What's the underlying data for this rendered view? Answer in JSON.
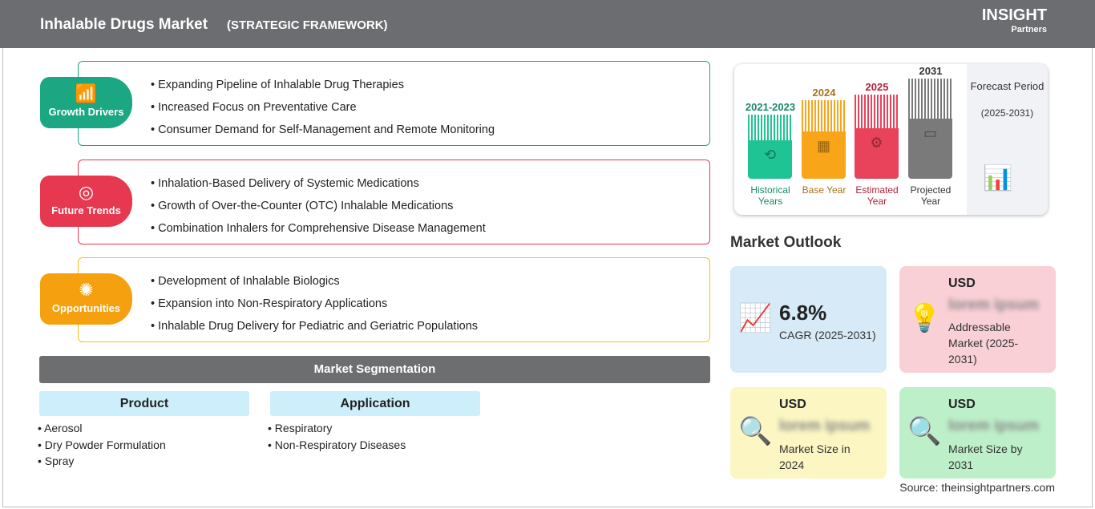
{
  "header": {
    "title": "Inhalable Drugs Market",
    "subtitle": "(STRATEGIC FRAMEWORK)",
    "logo": "The INSIGHT Partners"
  },
  "sections": [
    {
      "label": "Growth Drivers",
      "color": "#1aa782",
      "items": [
        "Expanding Pipeline of Inhalable Drug Therapies",
        "Increased Focus on Preventative Care",
        "Consumer Demand for Self-Management and Remote Monitoring"
      ]
    },
    {
      "label": "Future Trends",
      "color": "#e6384f",
      "items": [
        "Inhalation-Based Delivery of Systemic Medications",
        "Growth of Over-the-Counter (OTC) Inhalable Medications",
        "Combination Inhalers for Comprehensive Disease Management"
      ]
    },
    {
      "label": "Opportunities",
      "color": "#f5a10f",
      "items": [
        "Development of Inhalable Biologics",
        "Expansion into Non-Respiratory Applications",
        "Inhalable Drug Delivery for Pediatric and Geriatric Populations"
      ]
    }
  ],
  "segmentation": {
    "title": "Market Segmentation",
    "columns": [
      {
        "title": "Product",
        "items": [
          "Aerosol",
          "Dry Powder Formulation",
          "Spray"
        ]
      },
      {
        "title": "Application",
        "items": [
          "Respiratory",
          "Non-Respiratory Diseases"
        ]
      }
    ]
  },
  "timeline": {
    "bars": [
      {
        "year": "2021-2023",
        "label": "Historical Years",
        "color": "#1fc495",
        "text": "#1a8a6a"
      },
      {
        "year": "2024",
        "label": "Base Year",
        "color": "#f9a51a",
        "text": "#a8701c"
      },
      {
        "year": "2025",
        "label": "Estimated Year",
        "color": "#e8435a",
        "text": "#b0203a"
      },
      {
        "year": "2031",
        "label": "Projected Year",
        "color": "#7a7a7a",
        "text": "#333333"
      }
    ],
    "forecast": "Forecast Period",
    "forecast_range": "(2025-2031)"
  },
  "outlook": {
    "title": "Market Outlook",
    "cagr": {
      "value": "6.8%",
      "label": "CAGR (2025-2031)"
    },
    "addressable": {
      "unit": "USD",
      "value": "lorem ipsum",
      "label": "Addressable Market (2025-2031)"
    },
    "size2024": {
      "unit": "USD",
      "value": "lorem ipsum",
      "label": "Market Size in 2024"
    },
    "size2031": {
      "unit": "USD",
      "value": "lorem ipsum",
      "label": "Market Size by 2031"
    }
  },
  "source": "Source: theinsightpartners.com"
}
